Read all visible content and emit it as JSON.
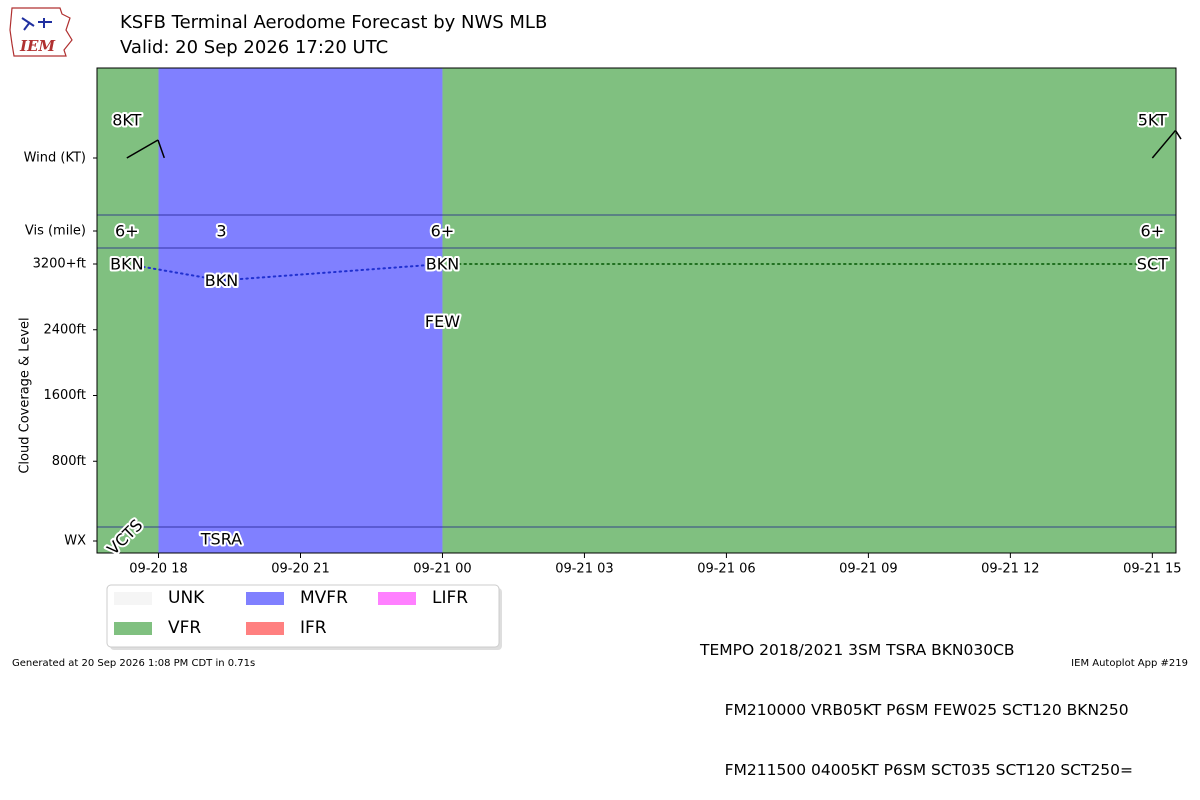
{
  "header": {
    "logo_text": "IEM",
    "title": "KSFB Terminal Aerodome Forecast by NWS MLB",
    "subtitle": "Valid: 20 Sep 2026 17:20 UTC"
  },
  "footer": {
    "generated": "Generated at 20 Sep 2026 1:08 PM CDT in 0.71s",
    "app": "IEM Autoplot App #219"
  },
  "taf": {
    "lines": [
      "TEMPO 2018/2021 3SM TSRA BKN030CB",
      "     FM210000 VRB05KT P6SM FEW025 SCT120 BKN250",
      "     FM211500 04005KT P6SM SCT035 SCT120 SCT250="
    ]
  },
  "colors": {
    "UNK": "#f5f5f5",
    "VFR": "#80c080",
    "MVFR": "#8080ff",
    "IFR": "#ff8080",
    "LIFR": "#ff80ff"
  },
  "chart_data": {
    "type": "timeline",
    "x_unit": "hours after 2026-09-20 17:00 UTC",
    "xlim": [
      -0.3,
      22.5
    ],
    "x_ticks": [
      {
        "x": 1,
        "label": "09-20 18"
      },
      {
        "x": 4,
        "label": "09-20 21"
      },
      {
        "x": 7,
        "label": "09-21 00"
      },
      {
        "x": 10,
        "label": "09-21 03"
      },
      {
        "x": 13,
        "label": "09-21 06"
      },
      {
        "x": 16,
        "label": "09-21 09"
      },
      {
        "x": 19,
        "label": "09-21 12"
      },
      {
        "x": 22,
        "label": "09-21 15"
      }
    ],
    "rows": [
      {
        "key": "wind",
        "label": "Wind (KT)"
      },
      {
        "key": "vis",
        "label": "Vis (mile)"
      },
      {
        "key": "cloud",
        "label": "Cloud Coverage & Level"
      },
      {
        "key": "wx",
        "label": "WX"
      }
    ],
    "cloud_axis": {
      "ylim": [
        0,
        3200
      ],
      "ticks": [
        {
          "value": 800,
          "label": "800ft"
        },
        {
          "value": 1600,
          "label": "1600ft"
        },
        {
          "value": 2400,
          "label": "2400ft"
        },
        {
          "value": 3200,
          "label": "3200+ft"
        }
      ]
    },
    "categories": [
      {
        "start": -0.3,
        "end": 1.0,
        "category": "VFR"
      },
      {
        "start": 1.0,
        "end": 7.0,
        "category": "MVFR"
      },
      {
        "start": 7.0,
        "end": 22.5,
        "category": "VFR"
      }
    ],
    "winds": [
      {
        "x": 0.33,
        "label": "8KT",
        "speed": 8,
        "direction": 60
      },
      {
        "x": 22.0,
        "label": "5KT",
        "speed": 5,
        "direction": 40
      }
    ],
    "visibility": [
      {
        "x": 0.33,
        "label": "6+"
      },
      {
        "x": 2.33,
        "label": "3"
      },
      {
        "x": 7.0,
        "label": "6+"
      },
      {
        "x": 22.0,
        "label": "6+"
      }
    ],
    "clouds": [
      {
        "x": 0.33,
        "level": 3200,
        "label": "BKN"
      },
      {
        "x": 2.33,
        "level": 3000,
        "label": "BKN"
      },
      {
        "x": 7.0,
        "level": 3200,
        "label": "BKN"
      },
      {
        "x": 7.0,
        "level": 2500,
        "label": "FEW"
      },
      {
        "x": 22.0,
        "level": 3200,
        "label": "SCT"
      }
    ],
    "cloud_lines": [
      {
        "points": [
          [
            0.33,
            3200
          ],
          [
            2.33,
            3000
          ],
          [
            7.0,
            3200
          ]
        ],
        "color": "#2030d0"
      },
      {
        "points": [
          [
            7.0,
            3200
          ],
          [
            22.0,
            3200
          ]
        ],
        "color": "#207020"
      }
    ],
    "weather": [
      {
        "x": 0.33,
        "label": "VCTS",
        "rotation": 45
      },
      {
        "x": 2.33,
        "label": "TSRA",
        "rotation": 0
      }
    ],
    "legend": {
      "placement": "bottom-left",
      "entries": [
        {
          "label": "UNK",
          "category": "UNK"
        },
        {
          "label": "VFR",
          "category": "VFR"
        },
        {
          "label": "MVFR",
          "category": "MVFR"
        },
        {
          "label": "IFR",
          "category": "IFR"
        },
        {
          "label": "LIFR",
          "category": "LIFR"
        }
      ]
    }
  }
}
